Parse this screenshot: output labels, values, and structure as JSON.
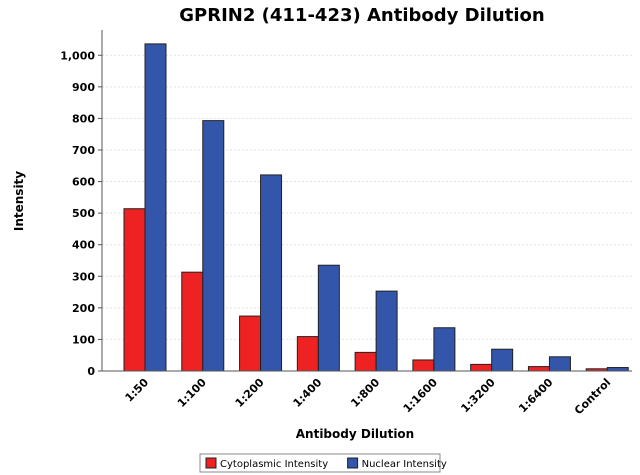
{
  "chart_data": {
    "type": "bar",
    "title": "GPRIN2 (411-423) Antibody Dilution",
    "xlabel": "Antibody Dilution",
    "ylabel": "Intensity",
    "ylim": [
      0,
      1080
    ],
    "yticks": [
      0,
      100,
      200,
      300,
      400,
      500,
      600,
      700,
      800,
      900,
      1000
    ],
    "ytick_labels": [
      "0",
      "100",
      "200",
      "300",
      "400",
      "500",
      "600",
      "700",
      "800",
      "900",
      "1,000"
    ],
    "categories": [
      "1:50",
      "1:100",
      "1:200",
      "1:400",
      "1:800",
      "1:1600",
      "1:3200",
      "1:6400",
      "Control"
    ],
    "series": [
      {
        "name": "Cytoplasmic Intensity",
        "color": "#ee2222",
        "values": [
          514,
          313,
          174,
          109,
          59,
          35,
          21,
          14,
          7
        ]
      },
      {
        "name": "Nuclear Intensity",
        "color": "#3355aa",
        "values": [
          1036,
          793,
          621,
          335,
          253,
          137,
          69,
          45,
          11
        ]
      }
    ],
    "grid": true,
    "legend_position": "bottom-center"
  }
}
